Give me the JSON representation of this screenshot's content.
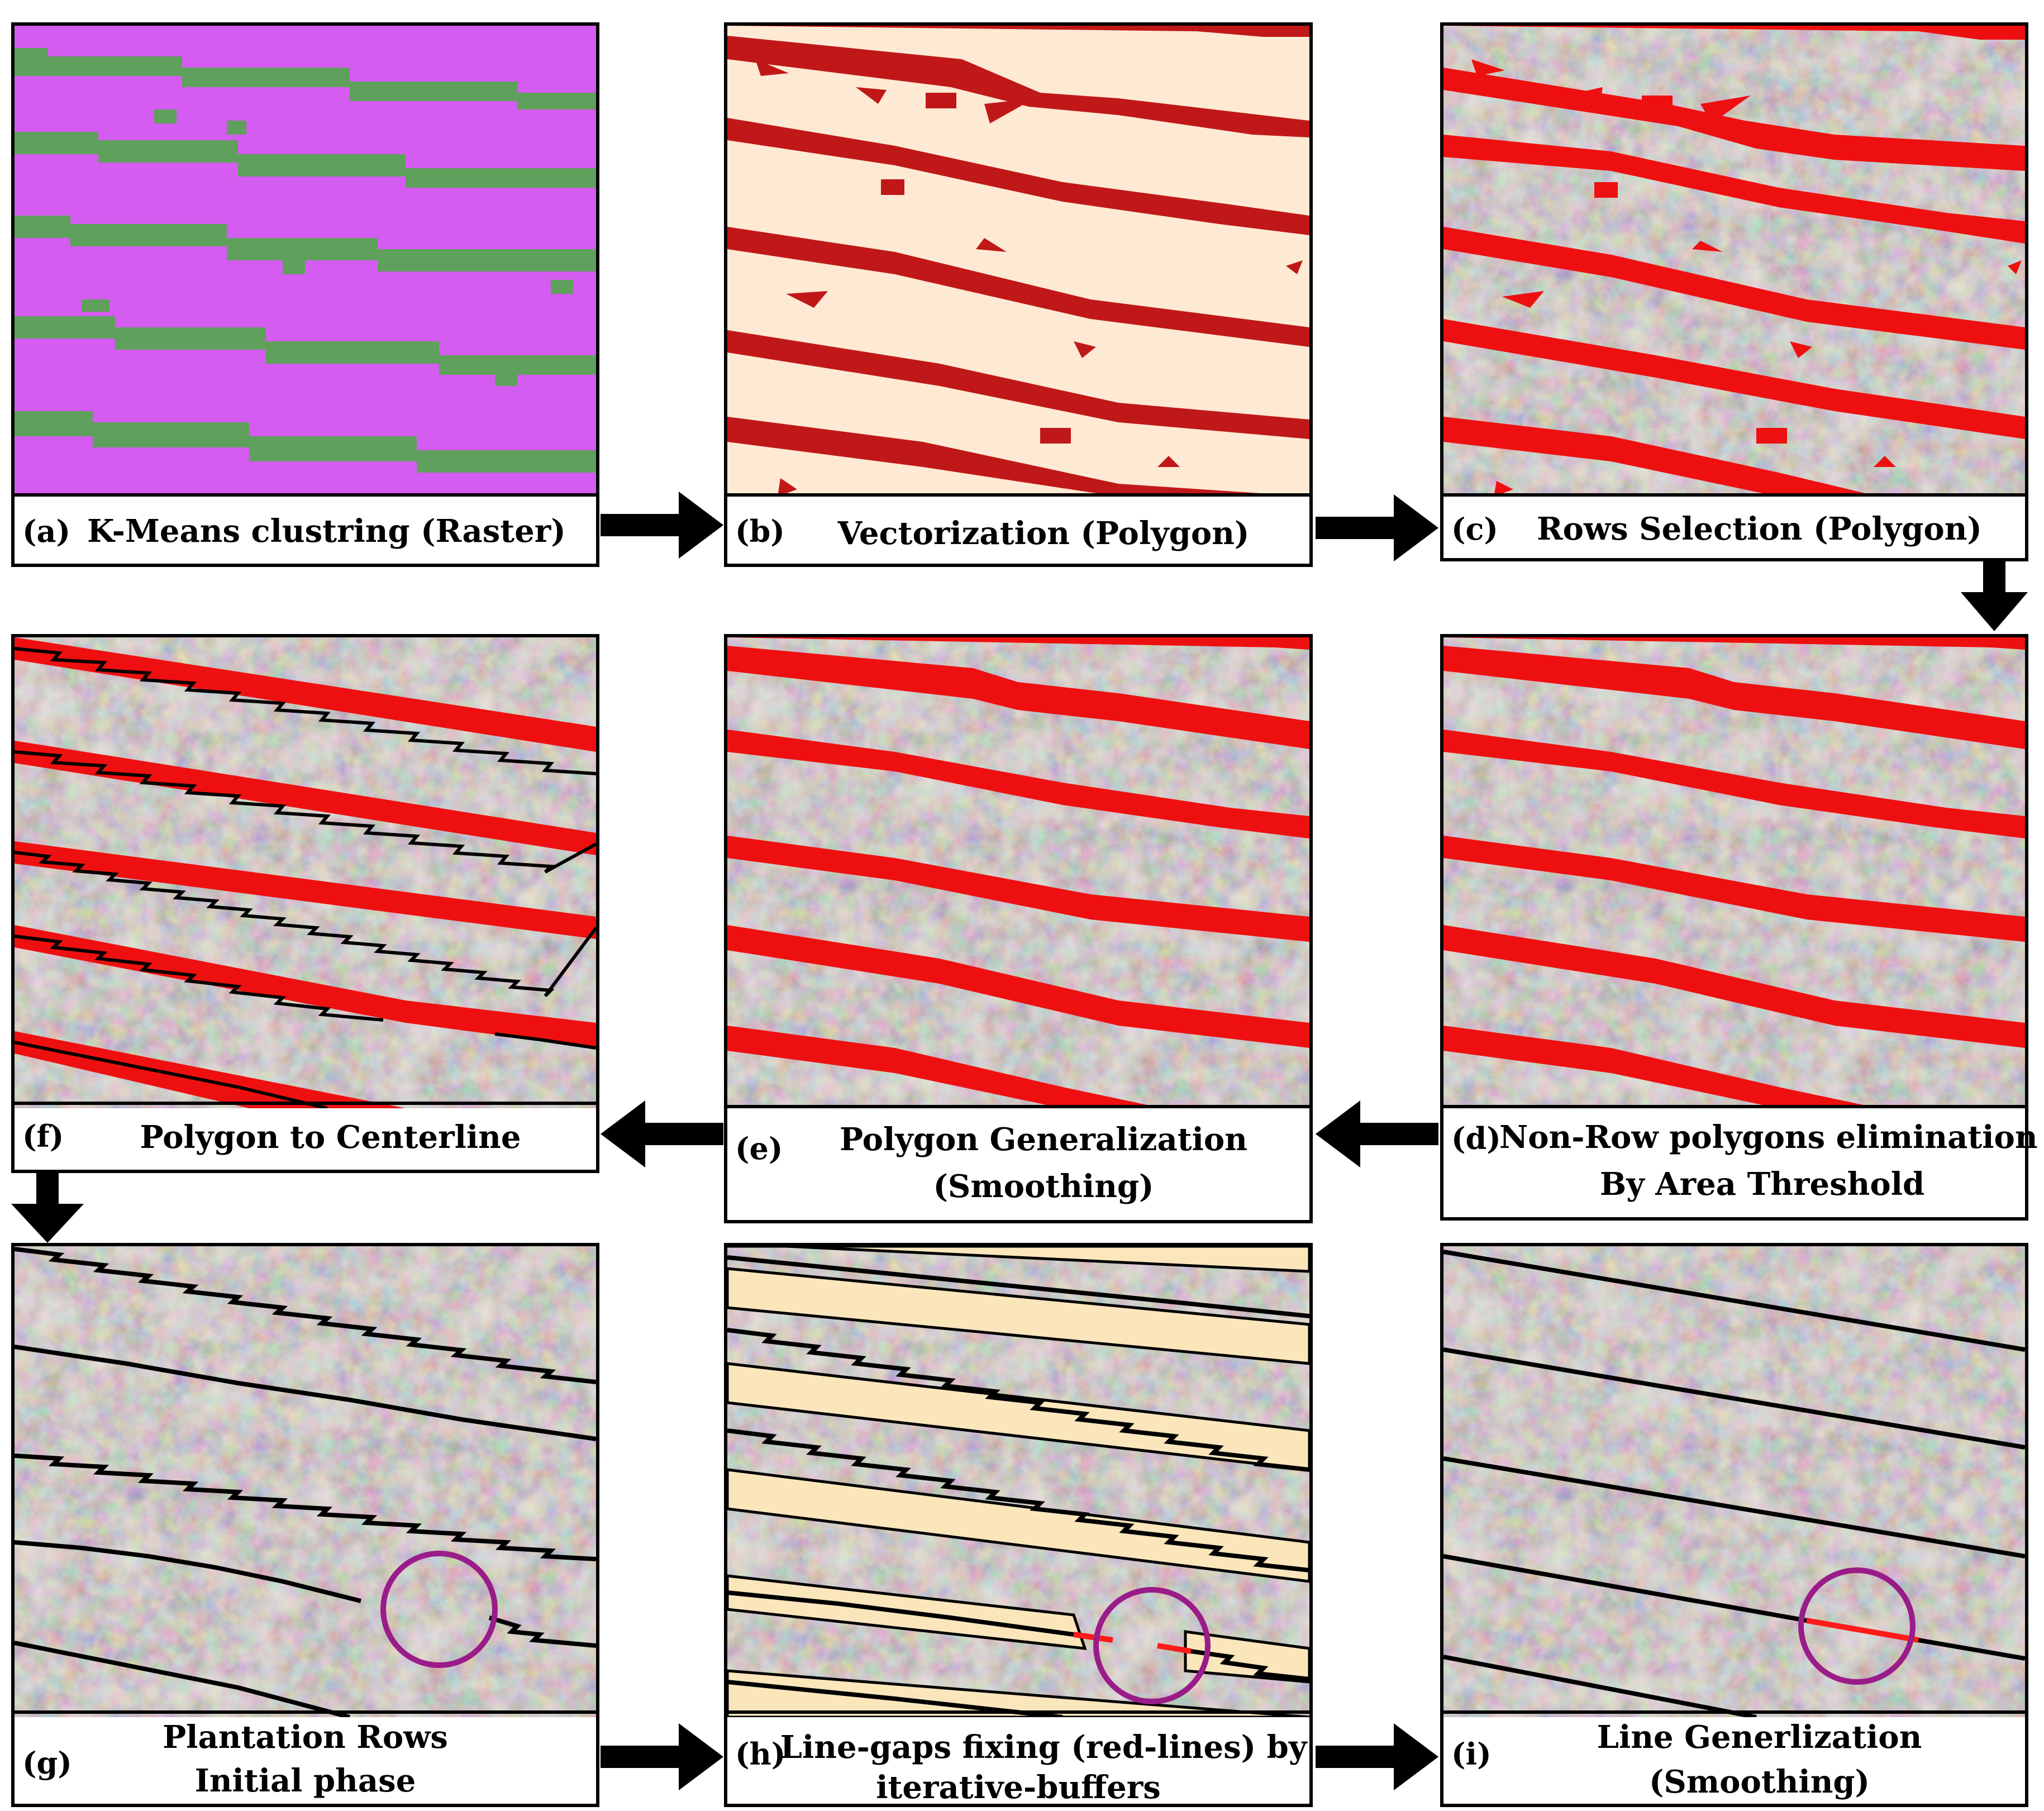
{
  "colors": {
    "cluster_bg": "#d45cf0",
    "cluster_row": "#5fa05c",
    "vector_bg": "#fde9d4",
    "vector_row": "#c01818",
    "row_red": "#ee1010",
    "buffer_fill": "#fbe6bc",
    "circle": "#9a1c88",
    "line_black": "#000000",
    "gap_red": "#ff1a1a",
    "aerial_base": "#8c8684"
  },
  "panels": [
    {
      "id": "a",
      "tag": "(a)",
      "lines": [
        "K-Means clustring (Raster)"
      ],
      "icon": "raster-image"
    },
    {
      "id": "b",
      "tag": "(b)",
      "lines": [
        "Vectorization (Polygon)"
      ],
      "icon": "polygon-image"
    },
    {
      "id": "c",
      "tag": "(c)",
      "lines": [
        "Rows Selection (Polygon)"
      ],
      "icon": "aerial-image"
    },
    {
      "id": "d",
      "tag": "(d)",
      "lines": [
        "Non-Row polygons elimination",
        "By Area Threshold"
      ],
      "icon": "aerial-image"
    },
    {
      "id": "e",
      "tag": "(e)",
      "lines": [
        "Polygon Generalization",
        "(Smoothing)"
      ],
      "icon": "aerial-image"
    },
    {
      "id": "f",
      "tag": "(f)",
      "lines": [
        "Polygon to Centerline"
      ],
      "icon": "aerial-image"
    },
    {
      "id": "g",
      "tag": "(g)",
      "lines": [
        "Plantation Rows",
        "Initial phase"
      ],
      "icon": "aerial-image"
    },
    {
      "id": "h",
      "tag": "(h)",
      "lines": [
        "Line-gaps fixing (red-lines) by",
        "iterative-buffers"
      ],
      "icon": "aerial-image"
    },
    {
      "id": "i",
      "tag": "(i)",
      "lines": [
        "Line Generlization",
        "(Smoothing)"
      ],
      "icon": "aerial-image"
    }
  ],
  "arrows": [
    "a-to-b",
    "b-to-c",
    "c-to-d",
    "d-to-e",
    "e-to-f",
    "f-to-g",
    "g-to-h",
    "h-to-i"
  ]
}
